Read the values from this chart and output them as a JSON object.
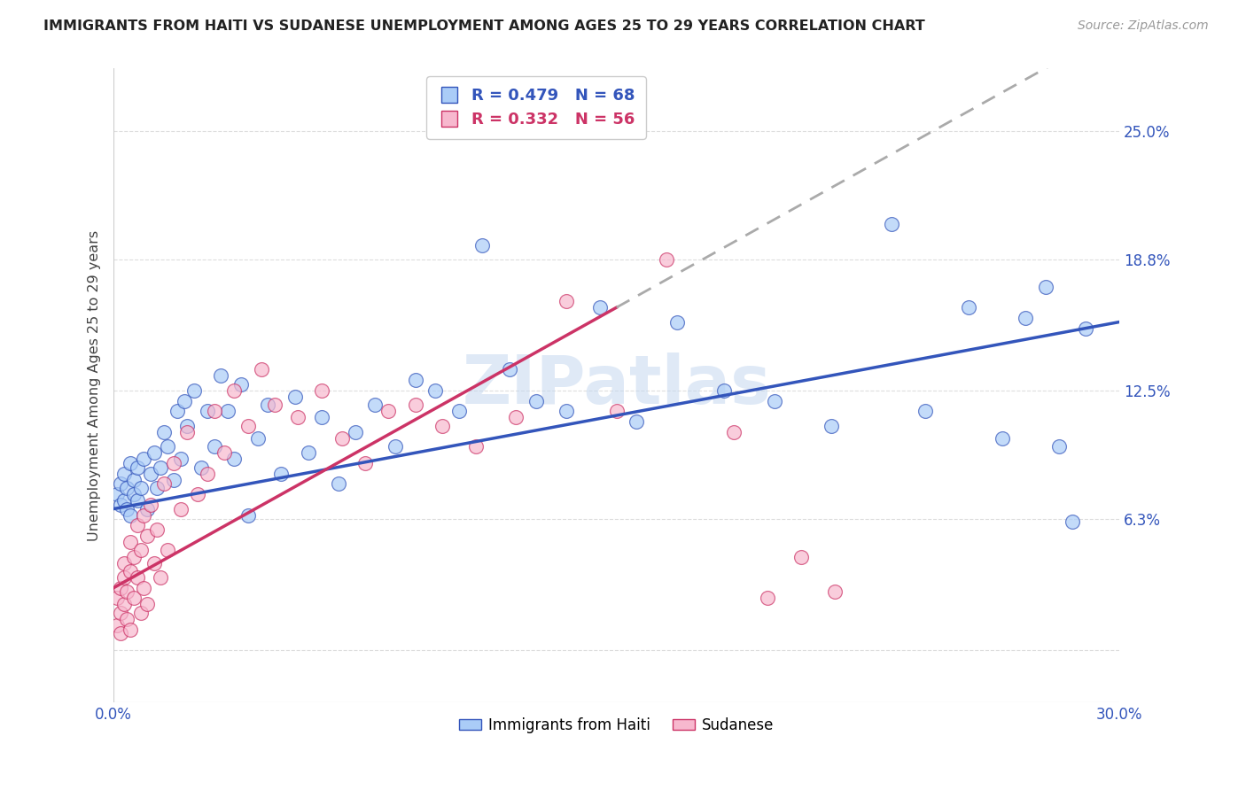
{
  "title": "IMMIGRANTS FROM HAITI VS SUDANESE UNEMPLOYMENT AMONG AGES 25 TO 29 YEARS CORRELATION CHART",
  "source": "Source: ZipAtlas.com",
  "ylabel": "Unemployment Among Ages 25 to 29 years",
  "xlim": [
    0.0,
    0.3
  ],
  "ylim": [
    -0.025,
    0.28
  ],
  "haiti_R": 0.479,
  "haiti_N": 68,
  "sudanese_R": 0.332,
  "sudanese_N": 56,
  "haiti_color": "#aaccf7",
  "sudanese_color": "#f7b8ce",
  "haiti_line_color": "#3355bb",
  "sudanese_line_color": "#cc3366",
  "watermark": "ZIPatlas",
  "background_color": "#ffffff",
  "haiti_x": [
    0.001,
    0.002,
    0.002,
    0.003,
    0.003,
    0.004,
    0.004,
    0.005,
    0.005,
    0.006,
    0.006,
    0.007,
    0.007,
    0.008,
    0.009,
    0.01,
    0.011,
    0.012,
    0.013,
    0.014,
    0.015,
    0.016,
    0.018,
    0.019,
    0.02,
    0.021,
    0.022,
    0.024,
    0.026,
    0.028,
    0.03,
    0.032,
    0.034,
    0.036,
    0.038,
    0.04,
    0.043,
    0.046,
    0.05,
    0.054,
    0.058,
    0.062,
    0.067,
    0.072,
    0.078,
    0.084,
    0.09,
    0.096,
    0.103,
    0.11,
    0.118,
    0.126,
    0.135,
    0.145,
    0.156,
    0.168,
    0.182,
    0.197,
    0.214,
    0.232,
    0.242,
    0.255,
    0.265,
    0.272,
    0.278,
    0.282,
    0.286,
    0.29
  ],
  "haiti_y": [
    0.075,
    0.08,
    0.07,
    0.072,
    0.085,
    0.068,
    0.078,
    0.065,
    0.09,
    0.075,
    0.082,
    0.072,
    0.088,
    0.078,
    0.092,
    0.068,
    0.085,
    0.095,
    0.078,
    0.088,
    0.105,
    0.098,
    0.082,
    0.115,
    0.092,
    0.12,
    0.108,
    0.125,
    0.088,
    0.115,
    0.098,
    0.132,
    0.115,
    0.092,
    0.128,
    0.065,
    0.102,
    0.118,
    0.085,
    0.122,
    0.095,
    0.112,
    0.08,
    0.105,
    0.118,
    0.098,
    0.13,
    0.125,
    0.115,
    0.195,
    0.135,
    0.12,
    0.115,
    0.165,
    0.11,
    0.158,
    0.125,
    0.12,
    0.108,
    0.205,
    0.115,
    0.165,
    0.102,
    0.16,
    0.175,
    0.098,
    0.062,
    0.155
  ],
  "sudanese_x": [
    0.001,
    0.001,
    0.002,
    0.002,
    0.002,
    0.003,
    0.003,
    0.003,
    0.004,
    0.004,
    0.005,
    0.005,
    0.005,
    0.006,
    0.006,
    0.007,
    0.007,
    0.008,
    0.008,
    0.009,
    0.009,
    0.01,
    0.01,
    0.011,
    0.012,
    0.013,
    0.014,
    0.015,
    0.016,
    0.018,
    0.02,
    0.022,
    0.025,
    0.028,
    0.03,
    0.033,
    0.036,
    0.04,
    0.044,
    0.048,
    0.055,
    0.062,
    0.068,
    0.075,
    0.082,
    0.09,
    0.098,
    0.108,
    0.12,
    0.135,
    0.15,
    0.165,
    0.185,
    0.195,
    0.205,
    0.215
  ],
  "sudanese_y": [
    0.012,
    0.025,
    0.018,
    0.03,
    0.008,
    0.035,
    0.022,
    0.042,
    0.028,
    0.015,
    0.038,
    0.052,
    0.01,
    0.045,
    0.025,
    0.06,
    0.035,
    0.048,
    0.018,
    0.065,
    0.03,
    0.055,
    0.022,
    0.07,
    0.042,
    0.058,
    0.035,
    0.08,
    0.048,
    0.09,
    0.068,
    0.105,
    0.075,
    0.085,
    0.115,
    0.095,
    0.125,
    0.108,
    0.135,
    0.118,
    0.112,
    0.125,
    0.102,
    0.09,
    0.115,
    0.118,
    0.108,
    0.098,
    0.112,
    0.168,
    0.115,
    0.188,
    0.105,
    0.025,
    0.045,
    0.028
  ]
}
